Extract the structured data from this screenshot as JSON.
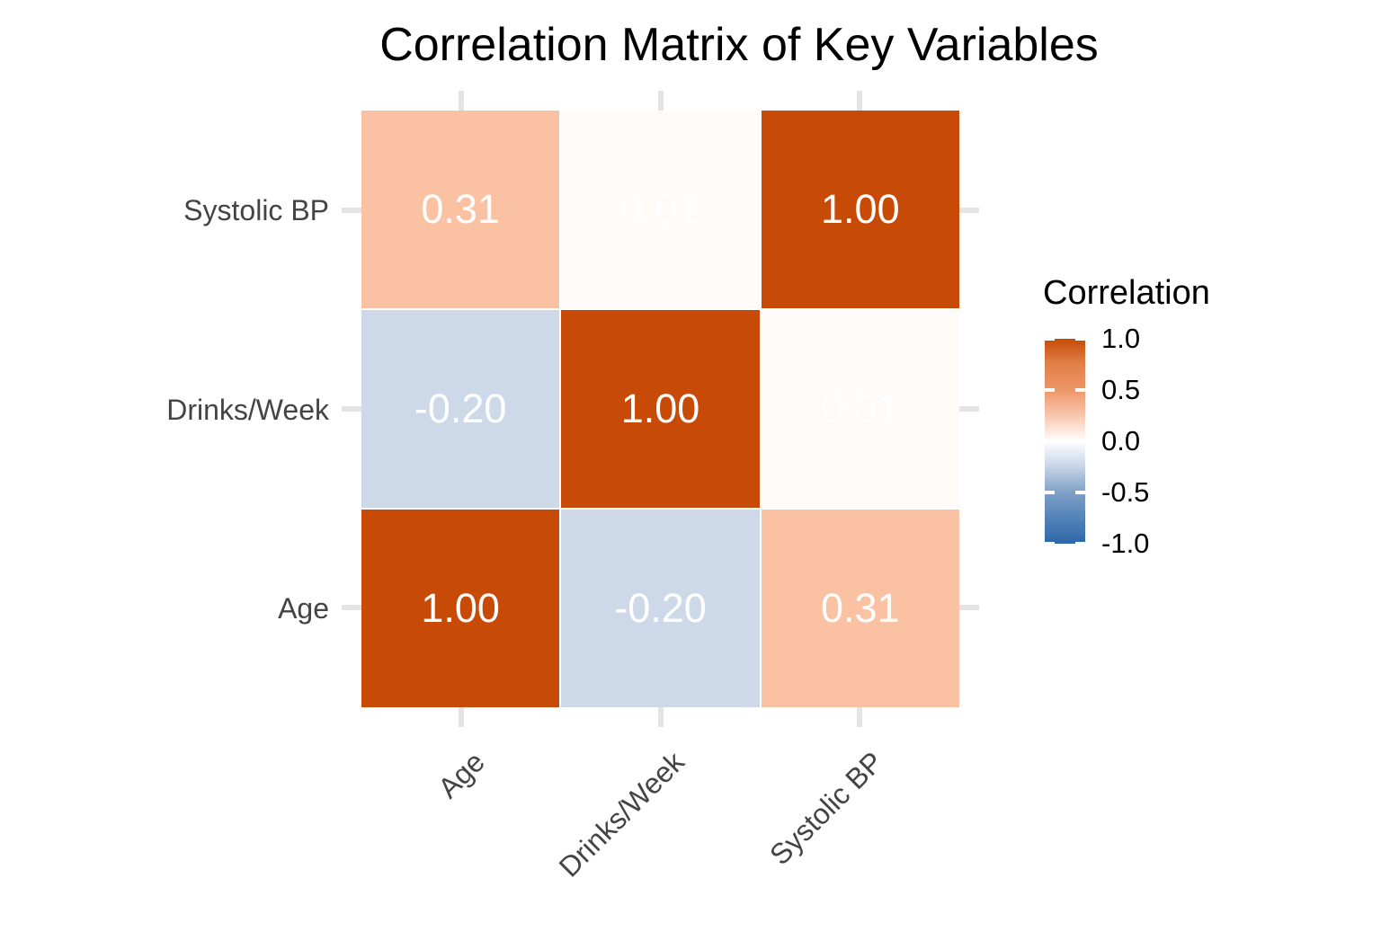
{
  "title": "Correlation Matrix of Key Variables",
  "chart_data": {
    "type": "heatmap",
    "title": "Correlation Matrix of Key Variables",
    "x_categories": [
      "Age",
      "Drinks/Week",
      "Systolic BP"
    ],
    "y_categories_top_to_bottom": [
      "Systolic BP",
      "Drinks/Week",
      "Age"
    ],
    "matrix_rows_top_to_bottom": [
      [
        0.31,
        0.01,
        1.0
      ],
      [
        -0.2,
        1.0,
        0.01
      ],
      [
        1.0,
        -0.2,
        0.31
      ]
    ],
    "cells": [
      {
        "row": "Systolic BP",
        "col": "Age",
        "value": 0.31,
        "label": "0.31",
        "color": "#FAC1A2"
      },
      {
        "row": "Systolic BP",
        "col": "Drinks/Week",
        "value": 0.01,
        "label": "0.01",
        "color": "#FFFBF9"
      },
      {
        "row": "Systolic BP",
        "col": "Systolic BP",
        "value": 1.0,
        "label": "1.00",
        "color": "#C74B07"
      },
      {
        "row": "Drinks/Week",
        "col": "Age",
        "value": -0.2,
        "label": "-0.20",
        "color": "#CDD9E9"
      },
      {
        "row": "Drinks/Week",
        "col": "Drinks/Week",
        "value": 1.0,
        "label": "1.00",
        "color": "#C74B07"
      },
      {
        "row": "Drinks/Week",
        "col": "Systolic BP",
        "value": 0.01,
        "label": "0.01",
        "color": "#FFFBF9"
      },
      {
        "row": "Age",
        "col": "Age",
        "value": 1.0,
        "label": "1.00",
        "color": "#C74B07"
      },
      {
        "row": "Age",
        "col": "Drinks/Week",
        "value": -0.2,
        "label": "-0.20",
        "color": "#CDD9E9"
      },
      {
        "row": "Age",
        "col": "Systolic BP",
        "value": 0.31,
        "label": "0.31",
        "color": "#FAC1A2"
      }
    ],
    "legend": {
      "title": "Correlation",
      "ticks": [
        "1.0",
        "0.5",
        "0.0",
        "-0.5",
        "-1.0"
      ],
      "range": [
        -1.0,
        1.0
      ],
      "position": "right",
      "gradient_high": "#C74B07",
      "gradient_mid": "#FFFFFF",
      "gradient_low": "#2D68AA"
    },
    "grid": "stubs-outside-tiles",
    "colors": {
      "tile_text": "#FFFFFF",
      "axis_text": "#444444",
      "title_text": "#000000",
      "grid_stub": "#E4E4E4"
    }
  }
}
